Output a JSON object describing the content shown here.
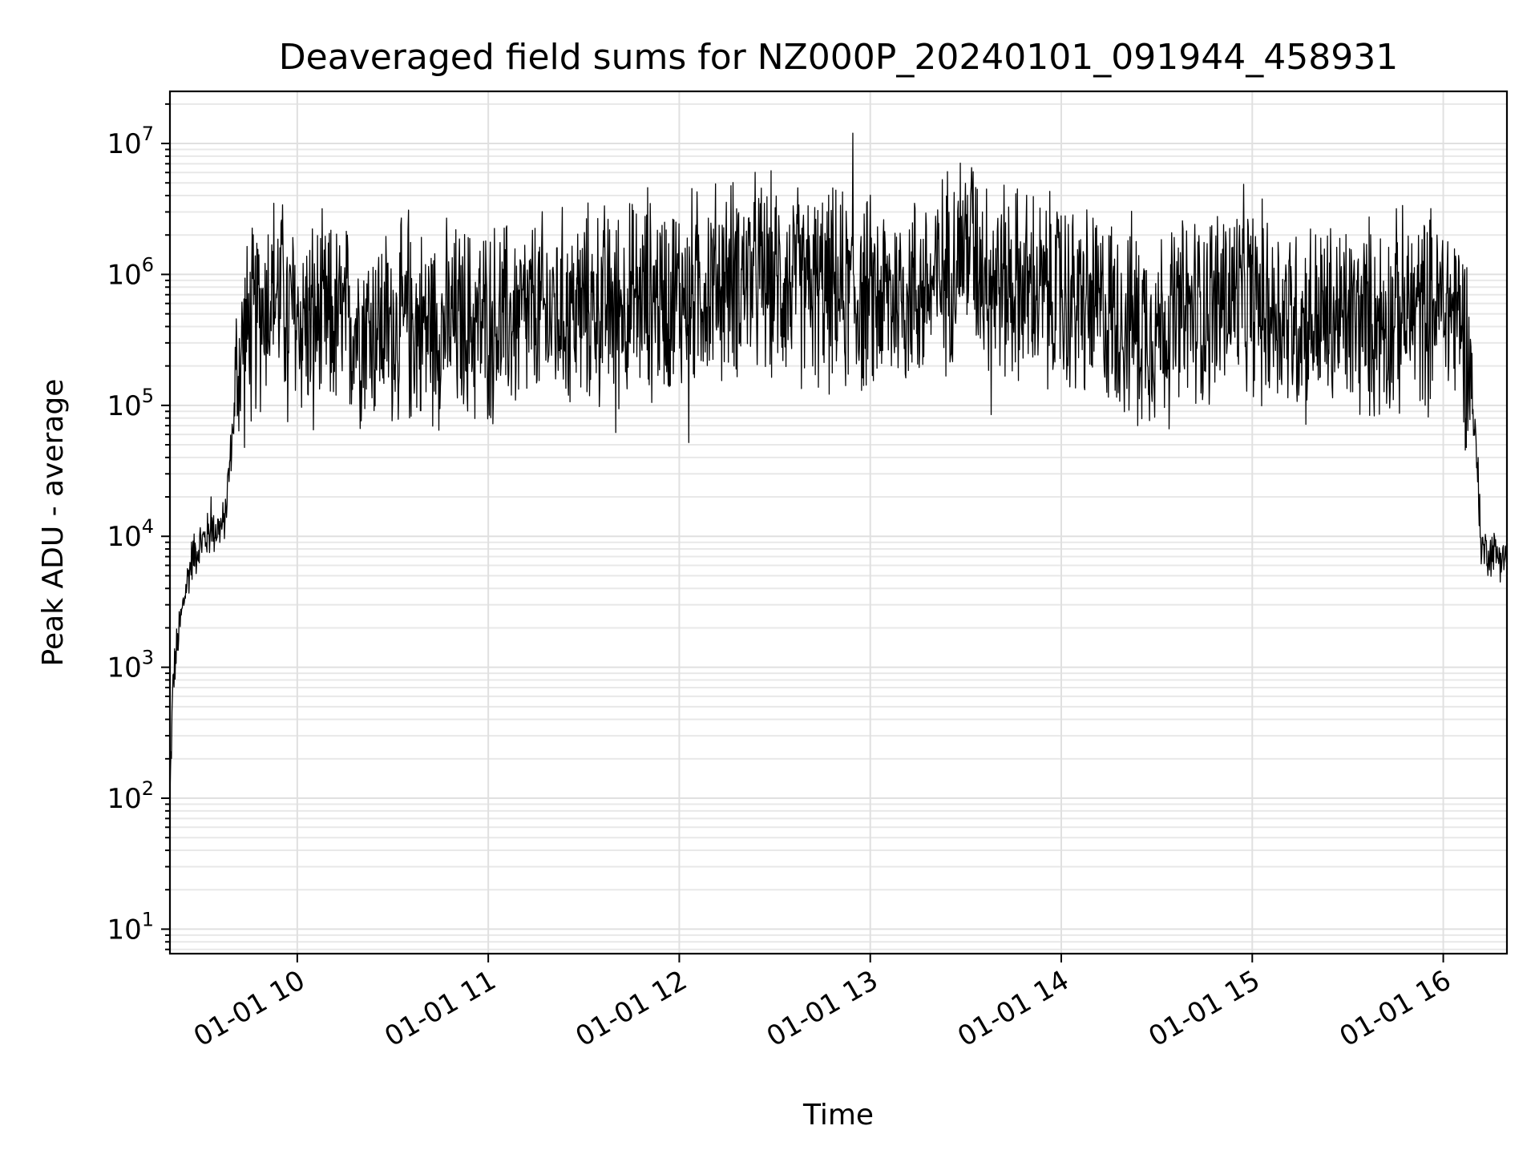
{
  "chart_data": {
    "type": "line",
    "title": "Deaveraged field sums for NZ000P_20240101_091944_458931",
    "xlabel": "Time",
    "ylabel": "Peak ADU - average",
    "y_scale": "log",
    "grid": true,
    "xlim": [
      "2024-01-01T09:20:00",
      "2024-01-01T16:20:00"
    ],
    "ylim": [
      6.5,
      25000000
    ],
    "x_ticks": [
      {
        "value": "2024-01-01T10:00:00",
        "label": "01-01 10"
      },
      {
        "value": "2024-01-01T11:00:00",
        "label": "01-01 11"
      },
      {
        "value": "2024-01-01T12:00:00",
        "label": "01-01 12"
      },
      {
        "value": "2024-01-01T13:00:00",
        "label": "01-01 13"
      },
      {
        "value": "2024-01-01T14:00:00",
        "label": "01-01 14"
      },
      {
        "value": "2024-01-01T15:00:00",
        "label": "01-01 15"
      },
      {
        "value": "2024-01-01T16:00:00",
        "label": "01-01 16"
      }
    ],
    "y_ticks": [
      {
        "value": 10,
        "base": "10",
        "exp": "1"
      },
      {
        "value": 100,
        "base": "10",
        "exp": "2"
      },
      {
        "value": 1000,
        "base": "10",
        "exp": "3"
      },
      {
        "value": 10000,
        "base": "10",
        "exp": "4"
      },
      {
        "value": 100000,
        "base": "10",
        "exp": "5"
      },
      {
        "value": 1000000,
        "base": "10",
        "exp": "6"
      },
      {
        "value": 10000000,
        "base": "10",
        "exp": "7"
      }
    ],
    "series": [
      {
        "color": "#000000",
        "envelope": [
          {
            "x": "2024-01-01T09:20:00",
            "y": 100
          },
          {
            "x": "2024-01-01T09:21:00",
            "y": 800
          },
          {
            "x": "2024-01-01T09:23:00",
            "y": 2000
          },
          {
            "x": "2024-01-01T09:25:00",
            "y": 4000
          },
          {
            "x": "2024-01-01T09:27:00",
            "y": 7000
          },
          {
            "x": "2024-01-01T09:30:00",
            "y": 9000
          },
          {
            "x": "2024-01-01T09:33:00",
            "y": 11000
          },
          {
            "x": "2024-01-01T09:37:00",
            "y": 12000
          },
          {
            "x": "2024-01-01T09:39:00",
            "y": 40000
          },
          {
            "x": "2024-01-01T09:41:00",
            "y": 150000
          },
          {
            "x": "2024-01-01T09:43:00",
            "y": 300000
          },
          {
            "x": "2024-01-01T09:47:00",
            "y": 450000
          },
          {
            "x": "2024-01-01T09:52:00",
            "y": 800000
          },
          {
            "x": "2024-01-01T10:00:00",
            "y": 450000
          },
          {
            "x": "2024-01-01T10:30:00",
            "y": 400000
          },
          {
            "x": "2024-01-01T11:00:00",
            "y": 420000
          },
          {
            "x": "2024-01-01T11:30:00",
            "y": 550000
          },
          {
            "x": "2024-01-01T12:00:00",
            "y": 700000
          },
          {
            "x": "2024-01-01T12:20:00",
            "y": 1000000
          },
          {
            "x": "2024-01-01T12:40:00",
            "y": 800000
          },
          {
            "x": "2024-01-01T13:00:00",
            "y": 650000
          },
          {
            "x": "2024-01-01T13:20:00",
            "y": 800000
          },
          {
            "x": "2024-01-01T13:30:00",
            "y": 1800000
          },
          {
            "x": "2024-01-01T13:40:00",
            "y": 900000
          },
          {
            "x": "2024-01-01T14:00:00",
            "y": 650000
          },
          {
            "x": "2024-01-01T14:30:00",
            "y": 400000
          },
          {
            "x": "2024-01-01T14:55:00",
            "y": 700000
          },
          {
            "x": "2024-01-01T15:15:00",
            "y": 450000
          },
          {
            "x": "2024-01-01T15:40:00",
            "y": 450000
          },
          {
            "x": "2024-01-01T16:00:00",
            "y": 600000
          },
          {
            "x": "2024-01-01T16:05:00",
            "y": 500000
          },
          {
            "x": "2024-01-01T16:08:00",
            "y": 250000
          },
          {
            "x": "2024-01-01T16:10:00",
            "y": 60000
          },
          {
            "x": "2024-01-01T16:12:00",
            "y": 8000
          },
          {
            "x": "2024-01-01T16:20:00",
            "y": 7000
          }
        ],
        "spikes": [
          {
            "x": "2024-01-01T12:54:30",
            "y": 12000000
          },
          {
            "x": "2024-01-01T11:50:00",
            "y": 4600000
          },
          {
            "x": "2024-01-01T13:32:00",
            "y": 4500000
          },
          {
            "x": "2024-01-01T12:25:00",
            "y": 3800000
          },
          {
            "x": "2024-01-01T09:55:00",
            "y": 2600000
          },
          {
            "x": "2024-01-01T10:35:00",
            "y": 3100000
          },
          {
            "x": "2024-01-01T14:00:00",
            "y": 2800000
          },
          {
            "x": "2024-01-01T14:51:00",
            "y": 2400000
          },
          {
            "x": "2024-01-01T15:58:00",
            "y": 2000000
          },
          {
            "x": "2024-01-01T16:11:00",
            "y": 40000
          },
          {
            "x": "2024-01-01T09:33:00",
            "y": 20000
          },
          {
            "x": "2024-01-01T12:03:00",
            "y": 52000
          },
          {
            "x": "2024-01-01T10:05:00",
            "y": 65000
          },
          {
            "x": "2024-01-01T11:40:00",
            "y": 62000
          },
          {
            "x": "2024-01-01T14:24:00",
            "y": 70000
          },
          {
            "x": "2024-01-01T13:38:00",
            "y": 85000
          },
          {
            "x": "2024-01-01T09:57:00",
            "y": 75000
          }
        ]
      }
    ]
  }
}
